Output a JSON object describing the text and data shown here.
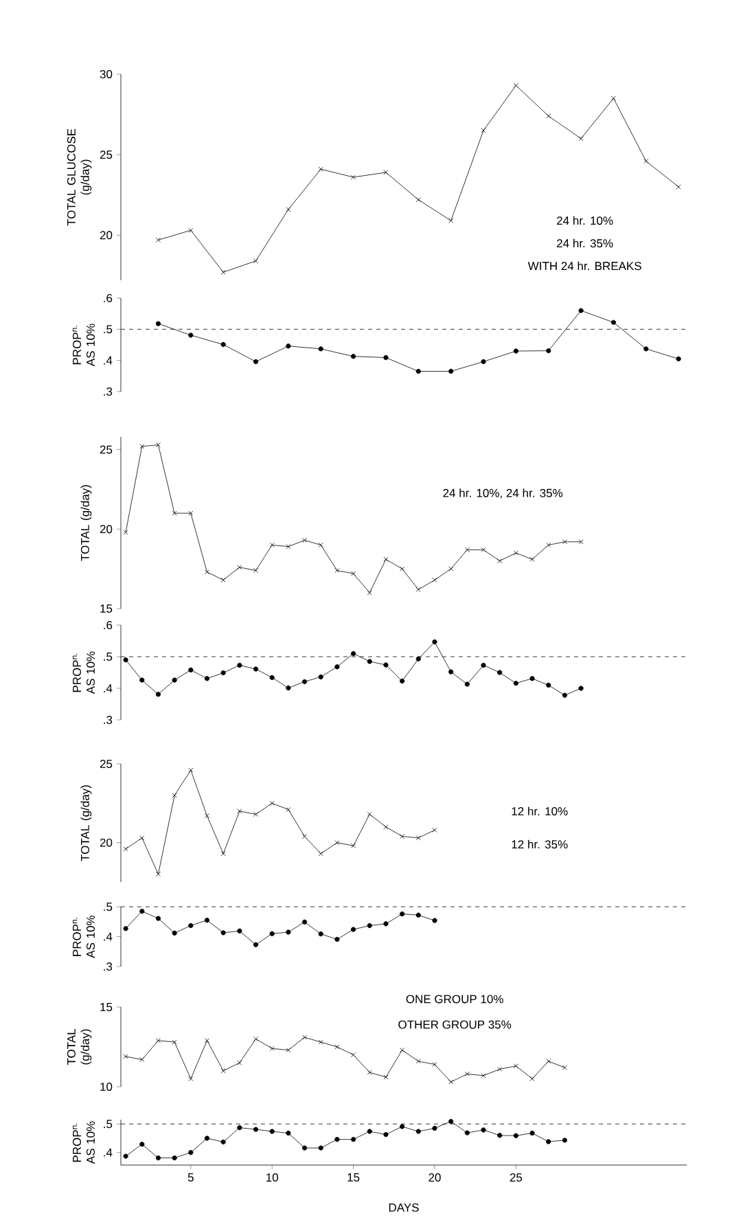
{
  "chart_data": [
    {
      "type": "line",
      "ylabel": "TOTAL GLUCOSE (g/day)",
      "marker": "cross",
      "color": "#000000",
      "tick_labels": "y",
      "ylim": [
        17.2,
        30
      ],
      "yticks": [
        20,
        25,
        30
      ],
      "x": [
        3,
        5,
        7,
        9,
        11,
        13,
        15,
        17,
        19,
        21,
        23,
        25,
        27,
        29,
        31,
        33,
        35
      ],
      "values": [
        19.7,
        20.3,
        17.7,
        18.4,
        21.6,
        24.1,
        23.6,
        23.9,
        22.2,
        20.9,
        26.5,
        29.3,
        27.4,
        26.0,
        28.5,
        24.6,
        23.0
      ],
      "annotations": [
        "24 hr. 10%",
        "24 hr. 35%",
        "WITH 24 hr. BREAKS"
      ]
    },
    {
      "type": "line",
      "ylabel": "PROP$^{n.}$ AS 10%",
      "marker": "circle",
      "color": "#000000",
      "tick_labels": "y",
      "ylim": [
        0.3,
        0.6
      ],
      "yticks": [
        {
          "value": 0.3,
          "label": ".3"
        },
        {
          "value": 0.4,
          "label": ".4"
        },
        {
          "value": 0.5,
          "label": ".5"
        },
        {
          "value": 0.6,
          "label": ".6"
        }
      ],
      "x": [
        3,
        5,
        7,
        9,
        11,
        13,
        15,
        17,
        19,
        21,
        23,
        25,
        27,
        29,
        31,
        33,
        35
      ],
      "values": [
        0.518,
        0.481,
        0.451,
        0.396,
        0.446,
        0.437,
        0.413,
        0.409,
        0.365,
        0.365,
        0.396,
        0.43,
        0.431,
        0.56,
        0.522,
        0.437,
        0.405
      ],
      "ref_lines": [
        {
          "axis": "y",
          "value": 0.5,
          "line_style": "dashed"
        }
      ]
    },
    {
      "type": "line",
      "ylabel": "TOTAL (g/day)",
      "marker": "cross",
      "color": "#000000",
      "tick_labels": "y",
      "ylim": [
        15,
        25.8
      ],
      "yticks": [
        15,
        20,
        25
      ],
      "x": [
        1,
        2,
        3,
        4,
        5,
        6,
        7,
        8,
        9,
        10,
        11,
        12,
        13,
        14,
        15,
        16,
        17,
        18,
        19,
        20,
        21,
        22,
        23,
        24,
        25,
        26,
        27,
        28,
        29
      ],
      "values": [
        19.8,
        25.2,
        25.3,
        21.0,
        21.0,
        17.3,
        16.8,
        17.6,
        17.4,
        19.0,
        18.9,
        19.3,
        19.0,
        17.4,
        17.2,
        16.0,
        18.1,
        17.5,
        16.2,
        16.8,
        17.5,
        18.7,
        18.7,
        18.0,
        18.5,
        18.1,
        19.0,
        19.2,
        19.2
      ],
      "annotations": [
        "24 hr. 10%, 24 hr. 35%"
      ]
    },
    {
      "type": "line",
      "ylabel": "PROP$^{n.}$ AS 10%",
      "marker": "circle",
      "color": "#000000",
      "tick_labels": "y",
      "ylim": [
        0.3,
        0.6
      ],
      "yticks": [
        {
          "value": 0.3,
          "label": ".3"
        },
        {
          "value": 0.4,
          "label": ".4"
        },
        {
          "value": 0.5,
          "label": ".5"
        },
        {
          "value": 0.6,
          "label": ".6"
        }
      ],
      "x": [
        1,
        2,
        3,
        4,
        5,
        6,
        7,
        8,
        9,
        10,
        11,
        12,
        13,
        14,
        15,
        16,
        17,
        18,
        19,
        20,
        21,
        22,
        23,
        24,
        25,
        26,
        27,
        28,
        29
      ],
      "values": [
        0.49,
        0.426,
        0.381,
        0.426,
        0.458,
        0.431,
        0.449,
        0.473,
        0.461,
        0.434,
        0.401,
        0.421,
        0.436,
        0.468,
        0.51,
        0.485,
        0.474,
        0.423,
        0.493,
        0.547,
        0.452,
        0.413,
        0.473,
        0.45,
        0.416,
        0.431,
        0.41,
        0.378,
        0.4
      ],
      "ref_lines": [
        {
          "axis": "y",
          "value": 0.5,
          "line_style": "dashed"
        }
      ]
    },
    {
      "type": "line",
      "ylabel": "TOTAL (g/day)",
      "marker": "cross",
      "color": "#000000",
      "tick_labels": "y",
      "ylim": [
        17.5,
        25
      ],
      "yticks": [
        20,
        25
      ],
      "x": [
        1,
        2,
        3,
        4,
        5,
        6,
        7,
        8,
        9,
        10,
        11,
        12,
        13,
        14,
        15,
        16,
        17,
        18,
        19,
        20
      ],
      "values": [
        19.6,
        20.3,
        18.0,
        23.0,
        24.6,
        21.7,
        19.3,
        22.0,
        21.8,
        22.5,
        22.1,
        20.4,
        19.3,
        20.0,
        19.8,
        21.8,
        21.0,
        20.4,
        20.3,
        20.8
      ],
      "annotations": [
        "12 hr. 10%",
        "12 hr. 35%"
      ]
    },
    {
      "type": "line",
      "ylabel": "PROP$^{n.}$ AS 10%",
      "marker": "circle",
      "color": "#000000",
      "tick_labels": "y",
      "ylim": [
        0.3,
        0.5
      ],
      "yticks": [
        {
          "value": 0.3,
          "label": ".3"
        },
        {
          "value": 0.4,
          "label": ".4"
        },
        {
          "value": 0.5,
          "label": ".5"
        }
      ],
      "x": [
        1,
        2,
        3,
        4,
        5,
        6,
        7,
        8,
        9,
        10,
        11,
        12,
        13,
        14,
        15,
        16,
        17,
        18,
        19,
        20
      ],
      "values": [
        0.427,
        0.485,
        0.461,
        0.412,
        0.437,
        0.455,
        0.413,
        0.419,
        0.373,
        0.41,
        0.415,
        0.449,
        0.409,
        0.391,
        0.424,
        0.437,
        0.443,
        0.476,
        0.472,
        0.454
      ],
      "ref_lines": [
        {
          "axis": "y",
          "value": 0.5,
          "line_style": "dashed"
        }
      ]
    },
    {
      "type": "line",
      "ylabel": "TOTAL (g/day)",
      "marker": "cross",
      "color": "#000000",
      "tick_labels": "y",
      "ylim": [
        10,
        15
      ],
      "yticks": [
        10,
        15
      ],
      "x": [
        1,
        2,
        3,
        4,
        5,
        6,
        7,
        8,
        9,
        10,
        11,
        12,
        13,
        14,
        15,
        16,
        17,
        18,
        19,
        20,
        21,
        22,
        23,
        24,
        25,
        26,
        27,
        28
      ],
      "values": [
        11.9,
        11.7,
        12.9,
        12.8,
        10.5,
        12.9,
        11.0,
        11.5,
        13.0,
        12.4,
        12.3,
        13.1,
        12.8,
        12.5,
        12.0,
        10.9,
        10.6,
        12.3,
        11.6,
        11.4,
        10.3,
        10.8,
        10.7,
        11.1,
        11.3,
        10.5,
        11.6,
        11.2
      ],
      "annotations": [
        "ONE GROUP 10%",
        "OTHER GROUP 35%"
      ]
    },
    {
      "type": "line",
      "ylabel": "PROP$^{n.}$ AS 10%",
      "xlabel": "DAYS",
      "marker": "circle",
      "color": "#000000",
      "xlim": [
        0.7,
        35.5
      ],
      "ylim": [
        0.356,
        0.515
      ],
      "xticks": [
        5,
        10,
        15,
        20,
        25
      ],
      "yticks": [
        {
          "value": 0.4,
          "label": ".4"
        },
        {
          "value": 0.5,
          "label": ".5"
        }
      ],
      "x": [
        1,
        2,
        3,
        4,
        5,
        6,
        7,
        8,
        9,
        10,
        11,
        12,
        13,
        14,
        15,
        16,
        17,
        18,
        19,
        20,
        21,
        22,
        23,
        24,
        25,
        26,
        27,
        28
      ],
      "values": [
        0.387,
        0.429,
        0.381,
        0.381,
        0.4,
        0.45,
        0.437,
        0.487,
        0.481,
        0.474,
        0.468,
        0.416,
        0.416,
        0.446,
        0.446,
        0.474,
        0.463,
        0.491,
        0.474,
        0.485,
        0.509,
        0.469,
        0.479,
        0.46,
        0.459,
        0.468,
        0.438,
        0.443
      ],
      "ref_lines": [
        {
          "axis": "y",
          "value": 0.5,
          "line_style": "dashed"
        }
      ]
    }
  ]
}
